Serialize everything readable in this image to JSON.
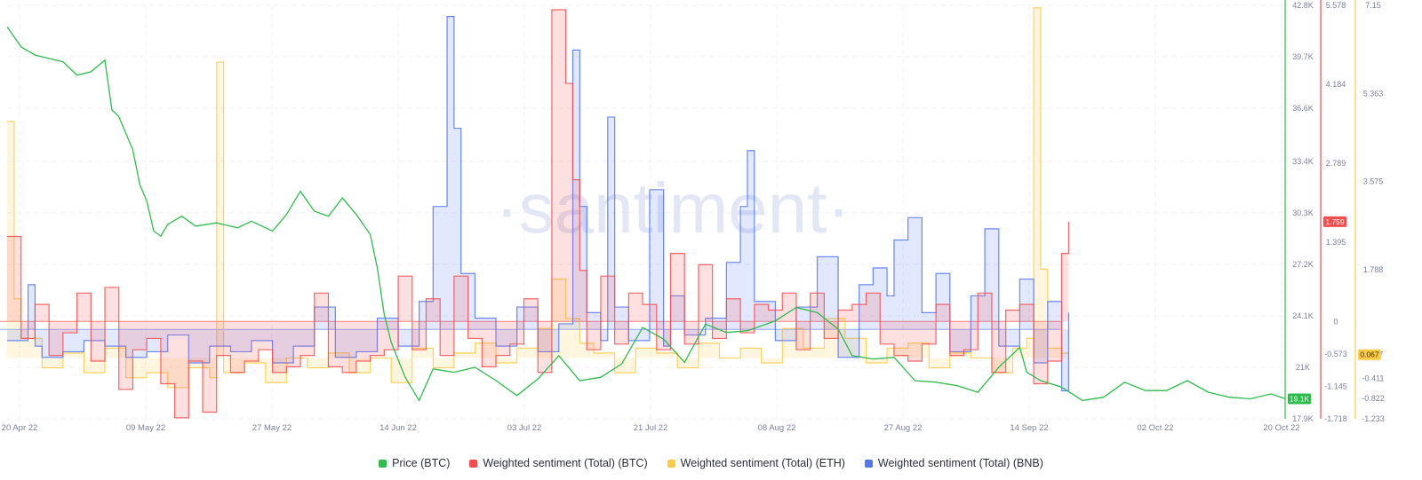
{
  "watermark": "·santiment·",
  "chart_data": {
    "type": "line",
    "x_axis": {
      "ticks": [
        "20 Apr 22",
        "09 May 22",
        "27 May 22",
        "14 Jun 22",
        "03 Jul 22",
        "21 Jul 22",
        "08 Aug 22",
        "27 Aug 22",
        "14 Sep 22",
        "02 Oct 22",
        "20 Oct 22"
      ],
      "range": [
        "2022-04-20",
        "2022-10-20"
      ]
    },
    "axes": {
      "price": {
        "color": "#2fbc4c",
        "ylim": [
          17900,
          42800
        ],
        "ticks": [
          "42.8K",
          "39.7K",
          "36.6K",
          "33.4K",
          "30.3K",
          "27.2K",
          "24.1K",
          "21K",
          "17.9K"
        ],
        "tick_values": [
          42800,
          39700,
          36600,
          33400,
          30300,
          27200,
          24100,
          21000,
          17900
        ],
        "last_value_label": "19.1K"
      },
      "btc": {
        "color": "#f34e4e",
        "ylim": [
          -1.718,
          5.578
        ],
        "ticks": [
          "5.578",
          "4.184",
          "2.789",
          "1.395",
          "0",
          "-0.573",
          "-1.145",
          "-1.718"
        ],
        "tick_values": [
          5.578,
          4.184,
          2.789,
          1.395,
          0,
          -0.573,
          -1.145,
          -1.718
        ],
        "last_value_label": "1.759"
      },
      "eth": {
        "color": "#ffcb47",
        "ylim": [
          -1.233,
          7.15
        ],
        "ticks": [
          "7.15",
          "5.363",
          "3.575",
          "1.788",
          "0.067",
          "-0.411",
          "-0.822",
          "-1.233"
        ],
        "tick_values": [
          7.15,
          5.363,
          3.575,
          1.788,
          0.067,
          -0.411,
          -0.822,
          -1.233
        ],
        "last_value_label": "0.067"
      },
      "bnb": {
        "color": "#5275f4",
        "ylim": [
          -1.6,
          5.8
        ],
        "ticks": []
      }
    },
    "series": [
      {
        "name": "Price (BTC)",
        "key": "price",
        "color": "#2fbc4c",
        "axis": "price",
        "x": [
          "2022-04-20",
          "2022-04-22",
          "2022-04-24",
          "2022-04-26",
          "2022-04-28",
          "2022-04-30",
          "2022-05-02",
          "2022-05-04",
          "2022-05-05",
          "2022-05-06",
          "2022-05-08",
          "2022-05-09",
          "2022-05-10",
          "2022-05-11",
          "2022-05-12",
          "2022-05-13",
          "2022-05-15",
          "2022-05-17",
          "2022-05-20",
          "2022-05-23",
          "2022-05-25",
          "2022-05-28",
          "2022-05-30",
          "2022-06-01",
          "2022-06-03",
          "2022-06-05",
          "2022-06-07",
          "2022-06-09",
          "2022-06-11",
          "2022-06-12",
          "2022-06-13",
          "2022-06-14",
          "2022-06-16",
          "2022-06-18",
          "2022-06-20",
          "2022-06-23",
          "2022-06-26",
          "2022-06-29",
          "2022-07-02",
          "2022-07-05",
          "2022-07-08",
          "2022-07-11",
          "2022-07-14",
          "2022-07-17",
          "2022-07-20",
          "2022-07-23",
          "2022-07-26",
          "2022-07-29",
          "2022-08-01",
          "2022-08-04",
          "2022-08-08",
          "2022-08-11",
          "2022-08-14",
          "2022-08-17",
          "2022-08-19",
          "2022-08-22",
          "2022-08-25",
          "2022-08-28",
          "2022-08-31",
          "2022-09-03",
          "2022-09-06",
          "2022-09-09",
          "2022-09-12",
          "2022-09-13",
          "2022-09-15",
          "2022-09-18",
          "2022-09-21",
          "2022-09-24",
          "2022-09-27",
          "2022-09-30",
          "2022-10-03",
          "2022-10-06",
          "2022-10-09",
          "2022-10-12",
          "2022-10-15",
          "2022-10-18",
          "2022-10-20"
        ],
        "values": [
          41500,
          40300,
          39800,
          39600,
          39400,
          38600,
          38800,
          39500,
          36500,
          36100,
          34100,
          32000,
          31000,
          29200,
          28900,
          29600,
          30100,
          29500,
          29700,
          29400,
          29800,
          29200,
          30200,
          31600,
          30400,
          30100,
          31200,
          30200,
          29000,
          27000,
          24200,
          22500,
          20400,
          19000,
          20900,
          20700,
          21000,
          20200,
          19300,
          20300,
          21700,
          20200,
          20400,
          21200,
          23400,
          22700,
          21300,
          23600,
          23100,
          23200,
          23800,
          24600,
          24300,
          23300,
          21700,
          21500,
          21600,
          20200,
          20100,
          19900,
          19500,
          21000,
          22200,
          20700,
          20200,
          19800,
          19000,
          19200,
          20100,
          19600,
          19600,
          20200,
          19500,
          19200,
          19100,
          19400,
          19100
        ]
      },
      {
        "name": "Weighted sentiment (Total) (BTC)",
        "key": "btc",
        "color": "#f34e4e",
        "axis": "btc",
        "x": [
          "2022-04-20",
          "2022-04-22",
          "2022-04-24",
          "2022-04-26",
          "2022-04-28",
          "2022-04-30",
          "2022-05-02",
          "2022-05-04",
          "2022-05-06",
          "2022-05-08",
          "2022-05-10",
          "2022-05-12",
          "2022-05-14",
          "2022-05-16",
          "2022-05-18",
          "2022-05-20",
          "2022-05-22",
          "2022-05-24",
          "2022-05-26",
          "2022-05-28",
          "2022-05-30",
          "2022-06-01",
          "2022-06-03",
          "2022-06-05",
          "2022-06-07",
          "2022-06-09",
          "2022-06-11",
          "2022-06-13",
          "2022-06-15",
          "2022-06-17",
          "2022-06-19",
          "2022-06-21",
          "2022-06-23",
          "2022-06-25",
          "2022-06-27",
          "2022-06-29",
          "2022-07-01",
          "2022-07-03",
          "2022-07-05",
          "2022-07-07",
          "2022-07-09",
          "2022-07-10",
          "2022-07-11",
          "2022-07-12",
          "2022-07-14",
          "2022-07-16",
          "2022-07-18",
          "2022-07-20",
          "2022-07-22",
          "2022-07-24",
          "2022-07-26",
          "2022-07-28",
          "2022-07-30",
          "2022-08-01",
          "2022-08-03",
          "2022-08-05",
          "2022-08-07",
          "2022-08-09",
          "2022-08-11",
          "2022-08-13",
          "2022-08-15",
          "2022-08-17",
          "2022-08-19",
          "2022-08-21",
          "2022-08-23",
          "2022-08-25",
          "2022-08-27",
          "2022-08-29",
          "2022-08-31",
          "2022-09-02",
          "2022-09-04",
          "2022-09-06",
          "2022-09-08",
          "2022-09-10",
          "2022-09-12",
          "2022-09-14",
          "2022-09-16",
          "2022-09-18",
          "2022-09-19"
        ],
        "values": [
          1.5,
          -0.3,
          0.3,
          -0.6,
          -0.2,
          0.5,
          -0.7,
          0.6,
          -1.2,
          -0.5,
          -0.3,
          -1.1,
          -1.7,
          -0.7,
          -1.6,
          -0.6,
          -0.9,
          -0.7,
          -0.5,
          -0.9,
          -0.8,
          -0.6,
          0.5,
          -0.8,
          -0.9,
          -0.7,
          -0.6,
          -0.5,
          0.8,
          -0.5,
          0.4,
          -0.6,
          0.8,
          -0.3,
          -0.8,
          -0.6,
          -0.4,
          0.4,
          -0.9,
          5.5,
          4.2,
          2.5,
          0.9,
          -0.5,
          0.8,
          -0.4,
          0.5,
          0.3,
          -0.5,
          1.2,
          -0.4,
          1.0,
          -0.3,
          0.4,
          -0.2,
          0.3,
          0.2,
          0.5,
          -0.5,
          0.5,
          -0.3,
          0.2,
          0.3,
          0.5,
          -0.4,
          -0.6,
          -0.7,
          -0.4,
          0.3,
          -0.6,
          -0.5,
          0.5,
          -0.9,
          0.2,
          0.3,
          -1.1,
          -0.7,
          1.2,
          1.759
        ]
      },
      {
        "name": "Weighted sentiment (Total) (ETH)",
        "key": "eth",
        "color": "#ffcb47",
        "axis": "eth",
        "x": [
          "2022-04-20",
          "2022-04-21",
          "2022-04-22",
          "2022-04-25",
          "2022-04-28",
          "2022-05-01",
          "2022-05-04",
          "2022-05-07",
          "2022-05-10",
          "2022-05-13",
          "2022-05-16",
          "2022-05-19",
          "2022-05-20",
          "2022-05-21",
          "2022-05-24",
          "2022-05-27",
          "2022-05-30",
          "2022-06-02",
          "2022-06-05",
          "2022-06-08",
          "2022-06-11",
          "2022-06-14",
          "2022-06-17",
          "2022-06-20",
          "2022-06-23",
          "2022-06-26",
          "2022-06-29",
          "2022-07-02",
          "2022-07-05",
          "2022-07-07",
          "2022-07-09",
          "2022-07-11",
          "2022-07-13",
          "2022-07-16",
          "2022-07-19",
          "2022-07-22",
          "2022-07-25",
          "2022-07-28",
          "2022-07-31",
          "2022-08-03",
          "2022-08-06",
          "2022-08-09",
          "2022-08-12",
          "2022-08-15",
          "2022-08-18",
          "2022-08-21",
          "2022-08-24",
          "2022-08-27",
          "2022-08-30",
          "2022-09-02",
          "2022-09-05",
          "2022-09-08",
          "2022-09-11",
          "2022-09-13",
          "2022-09-14",
          "2022-09-15",
          "2022-09-16",
          "2022-09-18",
          "2022-09-19"
        ],
        "values": [
          4.8,
          1.2,
          0.4,
          -0.2,
          0.1,
          -0.3,
          0.2,
          -0.4,
          -0.3,
          -0.6,
          -0.2,
          -0.4,
          6.0,
          -0.3,
          -0.1,
          -0.5,
          0.0,
          -0.2,
          0.1,
          -0.3,
          0.0,
          -0.5,
          0.2,
          -0.2,
          0.1,
          0.3,
          -0.1,
          0.2,
          0.6,
          1.6,
          0.8,
          0.3,
          0.1,
          -0.3,
          0.2,
          0.1,
          -0.2,
          0.3,
          0.0,
          0.2,
          -0.1,
          0.6,
          0.2,
          0.8,
          0.4,
          -0.1,
          0.2,
          0.3,
          -0.2,
          0.1,
          0.0,
          -0.3,
          0.2,
          0.4,
          7.1,
          1.8,
          0.2,
          0.1,
          0.067
        ]
      },
      {
        "name": "Weighted sentiment (Total) (BNB)",
        "key": "bnb",
        "color": "#5275f4",
        "axis": "bnb",
        "x": [
          "2022-04-20",
          "2022-04-23",
          "2022-04-24",
          "2022-04-25",
          "2022-04-28",
          "2022-05-01",
          "2022-05-04",
          "2022-05-07",
          "2022-05-10",
          "2022-05-13",
          "2022-05-16",
          "2022-05-19",
          "2022-05-22",
          "2022-05-25",
          "2022-05-28",
          "2022-05-31",
          "2022-06-03",
          "2022-06-06",
          "2022-06-09",
          "2022-06-12",
          "2022-06-15",
          "2022-06-18",
          "2022-06-20",
          "2022-06-22",
          "2022-06-23",
          "2022-06-24",
          "2022-06-26",
          "2022-06-29",
          "2022-07-02",
          "2022-07-05",
          "2022-07-08",
          "2022-07-10",
          "2022-07-11",
          "2022-07-12",
          "2022-07-14",
          "2022-07-15",
          "2022-07-16",
          "2022-07-18",
          "2022-07-21",
          "2022-07-23",
          "2022-07-24",
          "2022-07-26",
          "2022-07-29",
          "2022-08-01",
          "2022-08-03",
          "2022-08-04",
          "2022-08-05",
          "2022-08-08",
          "2022-08-11",
          "2022-08-14",
          "2022-08-17",
          "2022-08-20",
          "2022-08-22",
          "2022-08-24",
          "2022-08-25",
          "2022-08-27",
          "2022-08-29",
          "2022-08-31",
          "2022-09-02",
          "2022-09-05",
          "2022-09-07",
          "2022-09-09",
          "2022-09-12",
          "2022-09-14",
          "2022-09-16",
          "2022-09-18",
          "2022-09-19"
        ],
        "values": [
          -0.2,
          0.8,
          -0.3,
          -0.5,
          -0.4,
          -0.2,
          -0.3,
          -0.5,
          -0.4,
          -0.1,
          -0.6,
          -0.3,
          -0.4,
          -0.2,
          -0.6,
          -0.3,
          0.4,
          -0.5,
          -0.4,
          0.2,
          -0.3,
          0.5,
          2.2,
          5.6,
          3.6,
          1.0,
          0.2,
          -0.3,
          0.4,
          -0.4,
          0.1,
          5.0,
          2.2,
          0.3,
          -0.2,
          3.8,
          0.4,
          -0.2,
          2.5,
          -0.3,
          0.6,
          -0.1,
          0.2,
          1.2,
          2.2,
          3.2,
          0.5,
          -0.2,
          0.4,
          1.3,
          -0.5,
          0.8,
          1.1,
          0.6,
          1.6,
          2.0,
          0.3,
          1.0,
          -0.4,
          0.6,
          1.8,
          -0.3,
          0.9,
          -0.6,
          0.5,
          -1.1,
          0.3
        ]
      }
    ]
  }
}
